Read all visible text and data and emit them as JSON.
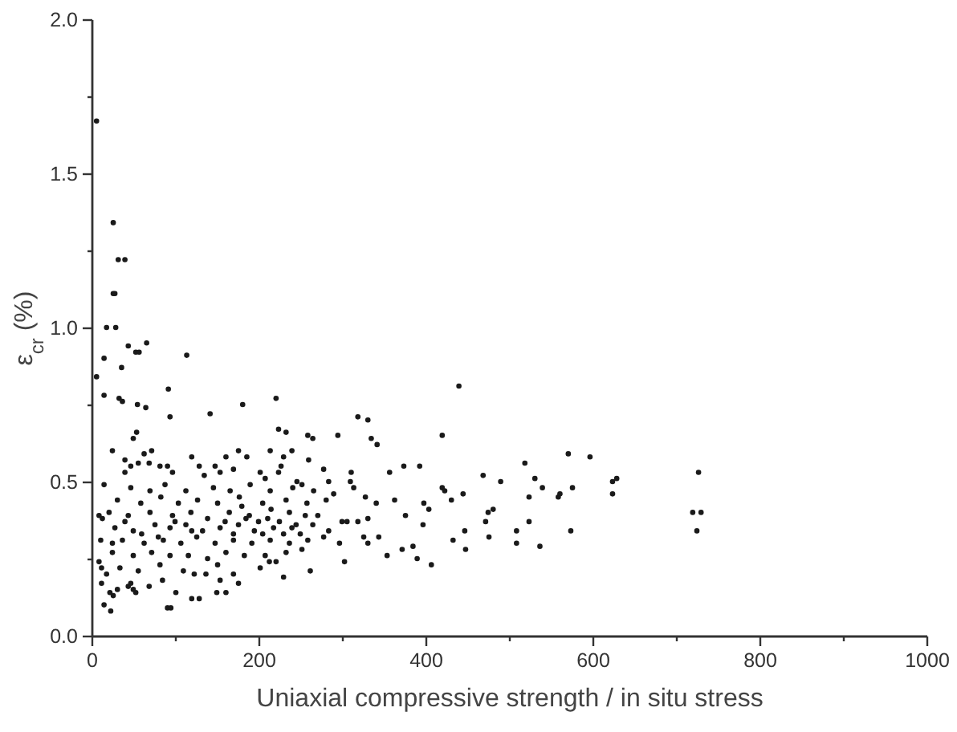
{
  "chart_data": {
    "type": "scatter",
    "xlabel": "Uniaxial compressive strength / in situ stress",
    "ylabel": "ε$_{cr}$ (%)",
    "color": "#1a1a1a",
    "marker": "circle",
    "xlim": [
      0,
      1000
    ],
    "xticks": [
      0,
      {
        "value": 100,
        "label": null
      },
      200,
      {
        "value": 300,
        "label": null
      },
      400,
      {
        "value": 500,
        "label": null
      },
      600,
      {
        "value": 700,
        "label": null
      },
      800,
      {
        "value": 900,
        "label": null
      },
      1000
    ],
    "ylim": [
      0,
      2
    ],
    "yticks": [
      {
        "value": 0,
        "label": "0.0"
      },
      {
        "value": 0.25,
        "label": null
      },
      0.5,
      {
        "value": 0.75,
        "label": null
      },
      {
        "value": 1,
        "label": "1.0"
      },
      {
        "value": 1.25,
        "label": null
      },
      1.5,
      {
        "value": 1.75,
        "label": null
      },
      {
        "value": 2,
        "label": "2.0"
      }
    ],
    "x": [
      6,
      26,
      32,
      40,
      26,
      28,
      18,
      29,
      15,
      6,
      44,
      53,
      57,
      66,
      36,
      114,
      15,
      33,
      37,
      55,
      65,
      92,
      94,
      142,
      181,
      221,
      440,
      224,
      233,
      259,
      265,
      319,
      331,
      295,
      335,
      342,
      420,
      54,
      50,
      63,
      72,
      25,
      120,
      40,
      161,
      176,
      186,
      214,
      230,
      240,
      260,
      311,
      310,
      314,
      357,
      374,
      393,
      420,
      423,
      445,
      278,
      284,
      290,
      328,
      341,
      363,
      376,
      398,
      404,
      431,
      300,
      306,
      319,
      331,
      326,
      331,
      344,
      354,
      372,
      385,
      390,
      407,
      397,
      433,
      447,
      448,
      297,
      303,
      262,
      230,
      221,
      469,
      475,
      481,
      472,
      476,
      490,
      519,
      531,
      540,
      524,
      524,
      509,
      509,
      537,
      559,
      561,
      571,
      576,
      574,
      597,
      624,
      629,
      624,
      727,
      720,
      730,
      725,
      23,
      15,
      22,
      12,
      26,
      31,
      44,
      50,
      53,
      47,
      91,
      95,
      101,
      85,
      120,
      129,
      150,
      161,
      137,
      123,
      154,
      176,
      202,
      213,
      170,
      69,
      9,
      12,
      18,
      9,
      13,
      15,
      11,
      25,
      40,
      47,
      56,
      69,
      82,
      91,
      97,
      129,
      135,
      148,
      154,
      170,
      202,
      208,
      224,
      227,
      246,
      252,
      47,
      70,
      88,
      113,
      146,
      166,
      190,
      214,
      241,
      266,
      31,
      59,
      83,
      104,
      127,
      151,
      177,
      205,
      233,
      258,
      281,
      21,
      44,
      70,
      97,
      119,
      139,
      165,
      189,
      211,
      237,
      256,
      271,
      28,
      50,
      76,
      94,
      113,
      133,
      154,
      176,
      195,
      218,
      240,
      265,
      284,
      37,
      63,
      86,
      107,
      126,
      148,
      170,
      192,
      214,
      237,
      259,
      278,
      25,
      50,
      72,
      94,
      116,
      139,
      161,
      183,
      208,
      233,
      252,
      34,
      56,
      82,
      110,
      151,
      160,
      185,
      200,
      225,
      245,
      170,
      205,
      230,
      250,
      180,
      215,
      60,
      40,
      100,
      80,
      120
    ],
    "values": [
      1.67,
      1.34,
      1.22,
      1.22,
      1.11,
      1.11,
      1.0,
      1.0,
      0.9,
      0.84,
      0.94,
      0.92,
      0.92,
      0.95,
      0.87,
      0.91,
      0.78,
      0.77,
      0.76,
      0.75,
      0.74,
      0.8,
      0.71,
      0.72,
      0.75,
      0.77,
      0.81,
      0.67,
      0.66,
      0.65,
      0.64,
      0.71,
      0.7,
      0.65,
      0.64,
      0.62,
      0.65,
      0.66,
      0.64,
      0.59,
      0.6,
      0.6,
      0.58,
      0.57,
      0.58,
      0.6,
      0.58,
      0.6,
      0.58,
      0.6,
      0.57,
      0.53,
      0.5,
      0.48,
      0.53,
      0.55,
      0.55,
      0.48,
      0.47,
      0.46,
      0.54,
      0.5,
      0.46,
      0.45,
      0.43,
      0.44,
      0.39,
      0.43,
      0.41,
      0.44,
      0.37,
      0.37,
      0.37,
      0.38,
      0.32,
      0.3,
      0.32,
      0.26,
      0.28,
      0.29,
      0.25,
      0.23,
      0.36,
      0.31,
      0.34,
      0.28,
      0.3,
      0.24,
      0.21,
      0.19,
      0.24,
      0.52,
      0.4,
      0.41,
      0.37,
      0.32,
      0.5,
      0.56,
      0.51,
      0.48,
      0.45,
      0.37,
      0.34,
      0.3,
      0.29,
      0.45,
      0.46,
      0.59,
      0.48,
      0.34,
      0.58,
      0.5,
      0.51,
      0.46,
      0.53,
      0.4,
      0.4,
      0.34,
      0.08,
      0.1,
      0.14,
      0.17,
      0.13,
      0.15,
      0.16,
      0.15,
      0.14,
      0.17,
      0.09,
      0.09,
      0.14,
      0.18,
      0.12,
      0.12,
      0.14,
      0.14,
      0.2,
      0.2,
      0.18,
      0.17,
      0.22,
      0.24,
      0.2,
      0.16,
      0.24,
      0.22,
      0.2,
      0.39,
      0.38,
      0.49,
      0.31,
      0.3,
      0.53,
      0.55,
      0.56,
      0.56,
      0.55,
      0.55,
      0.53,
      0.55,
      0.52,
      0.55,
      0.53,
      0.54,
      0.53,
      0.51,
      0.53,
      0.55,
      0.5,
      0.49,
      0.48,
      0.47,
      0.49,
      0.47,
      0.48,
      0.47,
      0.49,
      0.47,
      0.48,
      0.47,
      0.44,
      0.43,
      0.45,
      0.43,
      0.44,
      0.43,
      0.45,
      0.43,
      0.44,
      0.43,
      0.44,
      0.4,
      0.39,
      0.4,
      0.39,
      0.4,
      0.38,
      0.4,
      0.39,
      0.38,
      0.4,
      0.39,
      0.39,
      0.35,
      0.34,
      0.36,
      0.35,
      0.36,
      0.34,
      0.35,
      0.36,
      0.34,
      0.35,
      0.35,
      0.36,
      0.34,
      0.31,
      0.3,
      0.31,
      0.3,
      0.32,
      0.3,
      0.31,
      0.3,
      0.31,
      0.3,
      0.31,
      0.32,
      0.27,
      0.26,
      0.27,
      0.26,
      0.26,
      0.25,
      0.27,
      0.26,
      0.26,
      0.27,
      0.28,
      0.22,
      0.21,
      0.23,
      0.21,
      0.23,
      0.37,
      0.38,
      0.37,
      0.37,
      0.36,
      0.33,
      0.33,
      0.33,
      0.33,
      0.42,
      0.41,
      0.33,
      0.37,
      0.37,
      0.32,
      0.34
    ]
  }
}
